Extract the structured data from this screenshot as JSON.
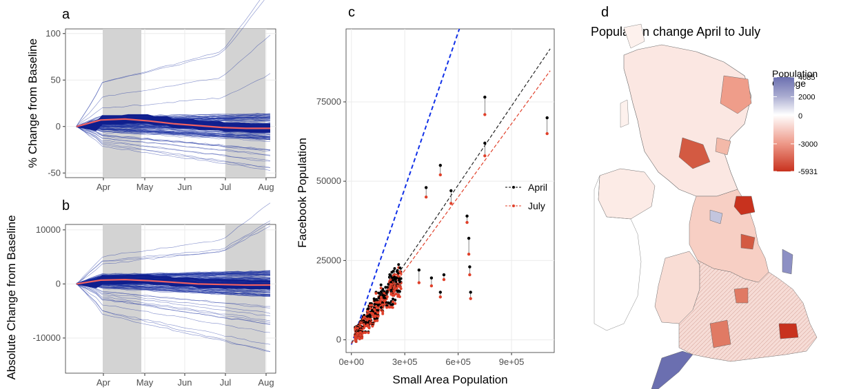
{
  "panels": {
    "a": {
      "letter": "a"
    },
    "b": {
      "letter": "b"
    },
    "c": {
      "letter": "c"
    },
    "d": {
      "letter": "d",
      "title": "Population change April to July"
    }
  },
  "colors": {
    "series_line": "#1a2fa0",
    "mean_line": "#f06060",
    "shade": "#d3d3d3",
    "april": "#000000",
    "july": "#e0402a",
    "fit_reference": "#1030e8",
    "legend_low": "#c8321e",
    "legend_mid": "#ffffff",
    "legend_high": "#6b6fb0"
  },
  "chart_data": [
    {
      "id": "a",
      "type": "line",
      "ylabel": "% Change from Baseline",
      "xlabel": "",
      "x_ticks": [
        "Apr",
        "May",
        "Jun",
        "Jul",
        "Aug"
      ],
      "y_ticks": [
        -50,
        0,
        50,
        100
      ],
      "ylim": [
        -55,
        105
      ],
      "shaded_periods": [
        [
          "Apr",
          "May"
        ],
        [
          "Jul",
          "Aug"
        ]
      ],
      "series": [
        {
          "name": "mean",
          "x": [
            "Mar 15",
            "Mar 22",
            "Apr 1",
            "May 1",
            "Jun 1",
            "Jul 1",
            "Jul 15",
            "Aug 1",
            "Aug 5"
          ],
          "values": [
            0,
            7,
            8,
            6,
            3,
            1,
            -1,
            -2,
            -2
          ]
        }
      ],
      "envelope_top": [
        [
          0,
          0
        ],
        [
          0.1,
          40
        ],
        [
          0.25,
          35
        ],
        [
          0.5,
          35
        ],
        [
          0.7,
          35
        ],
        [
          0.75,
          40
        ],
        [
          0.9,
          95
        ],
        [
          1.0,
          102
        ]
      ],
      "envelope_bottom": [
        [
          0,
          0
        ],
        [
          0.05,
          -20
        ],
        [
          0.1,
          -38
        ],
        [
          0.5,
          -43
        ],
        [
          1.0,
          -50
        ]
      ]
    },
    {
      "id": "b",
      "type": "line",
      "ylabel": "Absolute Change from Baseline",
      "xlabel": "",
      "x_ticks": [
        "Apr",
        "May",
        "Jun",
        "Jul",
        "Aug"
      ],
      "y_ticks": [
        -10000,
        0,
        10000
      ],
      "ylim": [
        -16500,
        11000
      ],
      "shaded_periods": [
        [
          "Apr",
          "May"
        ],
        [
          "Jul",
          "Aug"
        ]
      ],
      "series": [
        {
          "name": "mean",
          "x": [
            "Mar 15",
            "Mar 22",
            "Apr 1",
            "May 1",
            "Jun 1",
            "Jul 1",
            "Jul 15",
            "Aug 1",
            "Aug 5"
          ],
          "values": [
            0,
            700,
            800,
            600,
            300,
            0,
            -100,
            -200,
            -200
          ]
        }
      ]
    },
    {
      "id": "c",
      "type": "scatter",
      "xlabel": "Small Area Population",
      "ylabel": "Facebook Population",
      "x_ticks": [
        "0e+00",
        "3e+05",
        "6e+05",
        "9e+05"
      ],
      "x_tick_values": [
        0,
        300000,
        600000,
        900000
      ],
      "y_ticks": [
        "0",
        "25000",
        "50000",
        "75000"
      ],
      "y_tick_values": [
        0,
        25000,
        50000,
        75000
      ],
      "xlim": [
        -30000,
        1140000
      ],
      "ylim": [
        -4000,
        98000
      ],
      "legend": {
        "placement": "right-center",
        "entries": [
          "April",
          "July"
        ]
      },
      "reference_lines": [
        {
          "style": "dashed",
          "color": "blue",
          "slope": 0.164,
          "intercept": -1500
        },
        {
          "style": "dashed",
          "color": "black",
          "series": "April",
          "slope": 0.083,
          "intercept": -1000
        },
        {
          "style": "dashed",
          "color": "red",
          "series": "July",
          "slope": 0.077,
          "intercept": -1200
        }
      ],
      "highlighted_points": [
        {
          "x": 1100000,
          "april": 70000,
          "july": 65000
        },
        {
          "x": 750000,
          "april": 76500,
          "july": 71000
        },
        {
          "x": 650000,
          "april": 39000,
          "july": 37000
        },
        {
          "x": 660000,
          "april": 32000,
          "july": 27000
        },
        {
          "x": 665000,
          "april": 23000,
          "july": 20500
        },
        {
          "x": 670000,
          "april": 15000,
          "july": 13000
        },
        {
          "x": 750000,
          "april": 62000,
          "july": 58000
        },
        {
          "x": 500000,
          "april": 55000,
          "july": 52000
        },
        {
          "x": 520000,
          "april": 20500,
          "july": 19000
        },
        {
          "x": 500000,
          "april": 15000,
          "july": 13500
        },
        {
          "x": 420000,
          "april": 48000,
          "july": 45000
        },
        {
          "x": 560000,
          "april": 47000,
          "july": 43000
        },
        {
          "x": 450000,
          "april": 19500,
          "july": 17000
        },
        {
          "x": 380000,
          "april": 22000,
          "july": 18000
        }
      ]
    },
    {
      "id": "d",
      "type": "heatmap",
      "title": "Population change April to July",
      "legend": {
        "title_line1": "Population",
        "title_line2": "Change",
        "tick_labels": [
          "4085",
          "2000",
          "0",
          "-3000",
          "-5931"
        ],
        "tick_values": [
          4085,
          2000,
          0,
          -3000,
          -5931
        ]
      }
    }
  ]
}
